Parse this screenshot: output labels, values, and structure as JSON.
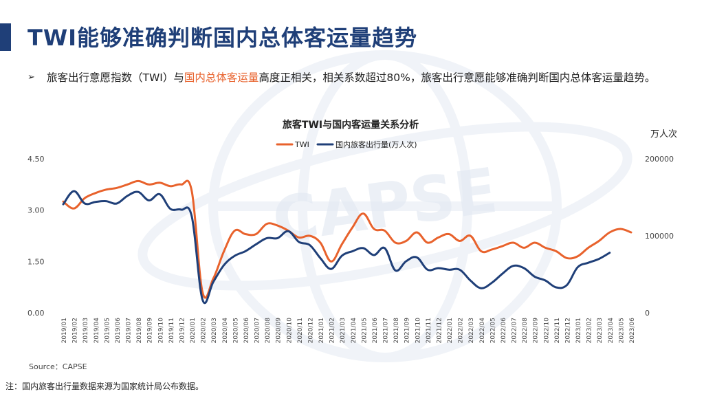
{
  "page": {
    "title": "TWI能够准确判断国内总体客运量趋势",
    "bullet_before": "旅客出行意愿指数（TWI）与",
    "bullet_highlight": "国内总体客运量",
    "bullet_after": "高度正相关，相关系数超过80%，旅客出行意愿能够准确判断国内总体客运量趋势。",
    "highlight_color": "#e8622c",
    "accent_color": "#1f3f78",
    "watermark_text": "CAPSE",
    "source": "Source：CAPSE",
    "note": "注：国内旅客出行量数据来源为国家统计局公布数据。"
  },
  "chart_data": {
    "type": "line",
    "title": "旅客TWI与国内客运量关系分析",
    "right_unit": "万人次",
    "legend_position": "top",
    "grid": false,
    "x": [
      "2019/01",
      "2019/02",
      "2019/03",
      "2019/04",
      "2019/05",
      "2019/06",
      "2019/07",
      "2019/08",
      "2019/09",
      "2019/10",
      "2019/11",
      "2019/12",
      "2020/01",
      "2020/02",
      "2020/03",
      "2020/04",
      "2020/05",
      "2020/06",
      "2020/07",
      "2020/08",
      "2020/09",
      "2020/10",
      "2020/11",
      "2020/12",
      "2021/01",
      "2021/02",
      "2021/03",
      "2021/04",
      "2021/05",
      "2021/06",
      "2021/07",
      "2021/08",
      "2021/09",
      "2021/10",
      "2021/11",
      "2021/12",
      "2022/01",
      "2022/02",
      "2022/03",
      "2022/04",
      "2022/05",
      "2022/06",
      "2022/07",
      "2022/08",
      "2022/09",
      "2022/10",
      "2022/11",
      "2022/12",
      "2023/01",
      "2023/02",
      "2023/03",
      "2023/04",
      "2023/05",
      "2023/06"
    ],
    "left_axis": {
      "ticks": [
        "0.00",
        "1.50",
        "3.00",
        "4.50"
      ],
      "ylim": [
        0,
        4.5
      ]
    },
    "right_axis": {
      "ticks": [
        "0",
        "100000",
        "200000"
      ],
      "ylim": [
        0,
        200000
      ]
    },
    "series": [
      {
        "name": "TWI",
        "axis": "left",
        "color": "#e8622c",
        "values": [
          3.25,
          3.05,
          3.35,
          3.5,
          3.6,
          3.65,
          3.75,
          3.85,
          3.75,
          3.8,
          3.7,
          3.75,
          3.55,
          0.6,
          1.0,
          1.8,
          2.4,
          2.3,
          2.3,
          2.6,
          2.55,
          2.4,
          2.2,
          2.25,
          2.05,
          1.5,
          2.0,
          2.5,
          2.9,
          2.45,
          2.4,
          2.05,
          2.1,
          2.35,
          2.05,
          2.2,
          2.3,
          2.1,
          2.25,
          1.8,
          1.85,
          1.95,
          2.05,
          1.9,
          2.05,
          1.9,
          1.8,
          1.6,
          1.65,
          1.9,
          2.1,
          2.35,
          2.45,
          2.35
        ]
      },
      {
        "name": "国内旅客出行量(万人次)",
        "axis": "right",
        "color": "#1f3f78",
        "values": [
          141000,
          158000,
          142000,
          144000,
          145000,
          142000,
          152000,
          157000,
          146000,
          154000,
          135000,
          134000,
          125000,
          17000,
          40000,
          62000,
          74000,
          80000,
          89000,
          97000,
          97000,
          106000,
          92000,
          88000,
          71000,
          57000,
          74000,
          80000,
          84000,
          75000,
          84000,
          55000,
          67000,
          72000,
          56000,
          58000,
          56000,
          56000,
          42000,
          32000,
          39000,
          51000,
          61000,
          58000,
          47000,
          42000,
          33000,
          36000,
          59000,
          65000,
          70000,
          78000,
          null,
          null
        ]
      }
    ]
  }
}
